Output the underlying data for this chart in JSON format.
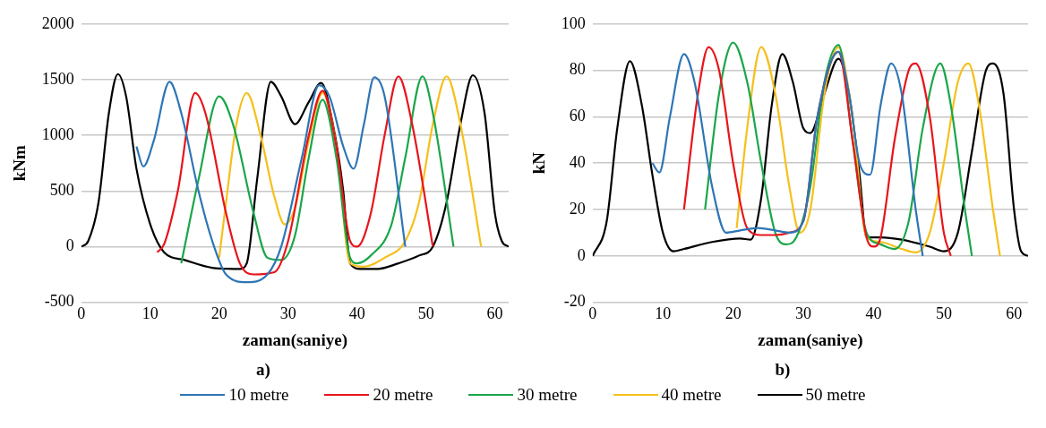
{
  "chart_data": [
    {
      "type": "line",
      "xlabel": "zaman(saniye)",
      "ylabel": "kNm",
      "xlim": [
        0,
        62
      ],
      "xticks": [
        0,
        10,
        20,
        30,
        40,
        50,
        60
      ],
      "ylim": [
        -500,
        2000
      ],
      "yticks": [
        -500,
        0,
        500,
        1000,
        1500,
        2000
      ],
      "grid": "y",
      "marker": "none",
      "line_style": "solid",
      "legend": "bottom",
      "annotations": [
        "a)"
      ],
      "series": [
        {
          "name": "10 metre",
          "color": "#2e75b6",
          "x": [
            8,
            9,
            10.5,
            12.8,
            14.5,
            17,
            19,
            21,
            24,
            27,
            29,
            32,
            34.5,
            36,
            38,
            39.5,
            41,
            42.5,
            44,
            47
          ],
          "values": [
            900,
            720,
            950,
            1480,
            1200,
            500,
            50,
            -250,
            -320,
            -250,
            0,
            800,
            1450,
            1350,
            900,
            700,
            1100,
            1520,
            1350,
            0
          ]
        },
        {
          "name": "20 metre",
          "color": "#e8141c",
          "x": [
            11,
            12,
            14,
            16.5,
            18,
            21,
            23,
            25,
            28,
            30,
            33,
            35,
            37,
            39,
            40,
            42,
            44,
            46,
            48,
            51
          ],
          "values": [
            -50,
            20,
            500,
            1380,
            1200,
            300,
            -150,
            -250,
            -230,
            50,
            1000,
            1400,
            900,
            50,
            0,
            300,
            1000,
            1530,
            1100,
            0
          ]
        },
        {
          "name": "30 metre",
          "color": "#1aa64a",
          "x": [
            14.5,
            17,
            20,
            22,
            25,
            27,
            29,
            31,
            33,
            35,
            37,
            39,
            40,
            42,
            45,
            47,
            49.5,
            51,
            54
          ],
          "values": [
            -150,
            600,
            1350,
            1100,
            300,
            -100,
            -120,
            100,
            800,
            1320,
            800,
            -100,
            -150,
            -80,
            200,
            800,
            1530,
            1200,
            0
          ]
        },
        {
          "name": "40 metre",
          "color": "#f5c01c",
          "x": [
            20,
            21,
            22.5,
            24,
            26,
            28,
            29.5,
            31,
            33,
            35,
            37,
            39,
            41,
            44,
            47,
            49,
            51,
            53,
            55,
            58
          ],
          "values": [
            -100,
            400,
            1100,
            1380,
            1000,
            450,
            200,
            350,
            950,
            1380,
            900,
            -150,
            -180,
            -100,
            50,
            400,
            1100,
            1530,
            1100,
            0
          ]
        },
        {
          "name": "50 metre",
          "color": "#000000",
          "x": [
            0,
            1,
            2.5,
            4,
            5.3,
            6.5,
            8,
            10,
            12,
            15,
            19,
            23,
            24,
            25.5,
            27.5,
            29,
            31,
            33,
            34.8,
            36.5,
            38,
            39,
            40.5,
            43,
            46,
            49,
            51,
            53,
            55,
            56.8,
            58.5,
            60,
            61,
            62
          ],
          "values": [
            0,
            50,
            400,
            1200,
            1550,
            1350,
            700,
            200,
            -50,
            -120,
            -190,
            -200,
            -150,
            600,
            1480,
            1350,
            1100,
            1300,
            1470,
            1100,
            500,
            -150,
            -200,
            -200,
            -150,
            -80,
            0,
            400,
            1100,
            1540,
            1200,
            300,
            50,
            0
          ]
        }
      ]
    },
    {
      "type": "line",
      "xlabel": "zaman(saniye)",
      "ylabel": "kN",
      "xlim": [
        0,
        62
      ],
      "xticks": [
        0,
        10,
        20,
        30,
        40,
        50,
        60
      ],
      "ylim": [
        -20,
        100
      ],
      "yticks": [
        -20,
        0,
        20,
        40,
        60,
        80,
        100
      ],
      "grid": "y",
      "marker": "none",
      "line_style": "solid",
      "annotations": [
        "b)"
      ],
      "series": [
        {
          "color": "#2e75b6",
          "x": [
            8.5,
            9.5,
            11,
            13,
            14.5,
            17,
            19,
            21,
            23.5,
            26,
            28,
            30,
            32,
            35,
            36.5,
            38,
            39.5,
            41,
            42.5,
            44,
            46,
            47
          ],
          "values": [
            40,
            36,
            60,
            87,
            75,
            30,
            10,
            11,
            12,
            11,
            10,
            15,
            60,
            88,
            70,
            40,
            35,
            65,
            83,
            70,
            20,
            0
          ]
        },
        {
          "color": "#e8141c",
          "x": [
            13,
            15,
            16.5,
            18,
            20,
            22,
            24,
            26,
            28,
            30,
            32,
            35,
            37,
            39,
            40,
            41,
            43,
            45,
            46,
            48,
            50,
            51
          ],
          "values": [
            20,
            70,
            90,
            80,
            40,
            12,
            9,
            9,
            10,
            15,
            60,
            88,
            50,
            8,
            4,
            8,
            50,
            80,
            83,
            60,
            10,
            0
          ]
        },
        {
          "color": "#1aa64a",
          "x": [
            16,
            18,
            20,
            22,
            24,
            26,
            27.5,
            29,
            31,
            33,
            35,
            37,
            39,
            41,
            43,
            45,
            47,
            49.5,
            51,
            53,
            54
          ],
          "values": [
            20,
            70,
            92,
            75,
            40,
            10,
            5,
            8,
            30,
            75,
            91,
            50,
            10,
            5,
            3,
            15,
            55,
            83,
            65,
            20,
            0
          ]
        },
        {
          "color": "#f5c01c",
          "x": [
            20.5,
            22,
            24,
            26,
            28,
            29.5,
            31,
            33,
            35,
            37,
            39,
            41,
            44,
            46,
            48,
            50,
            52,
            53.5,
            55,
            57,
            58
          ],
          "values": [
            12,
            55,
            90,
            70,
            30,
            10,
            20,
            70,
            90,
            60,
            8,
            6,
            3,
            1.5,
            10,
            40,
            75,
            83,
            65,
            20,
            0
          ]
        },
        {
          "color": "#000000",
          "x": [
            0,
            2,
            3.5,
            5.3,
            7,
            8.5,
            10,
            11.5,
            13,
            17,
            21,
            22.5,
            24,
            25.5,
            27,
            28.5,
            30,
            31,
            33,
            35,
            36.5,
            38,
            39,
            41,
            44,
            48,
            50,
            52,
            54,
            56,
            57,
            58.5,
            60,
            61,
            62
          ],
          "values": [
            0,
            15,
            55,
            84,
            65,
            35,
            10,
            2,
            3,
            6,
            7.5,
            7,
            25,
            65,
            87,
            75,
            55,
            53,
            70,
            85,
            70,
            35,
            8,
            8,
            7,
            4,
            2,
            10,
            45,
            80,
            83,
            70,
            20,
            2,
            0
          ]
        }
      ]
    }
  ]
}
